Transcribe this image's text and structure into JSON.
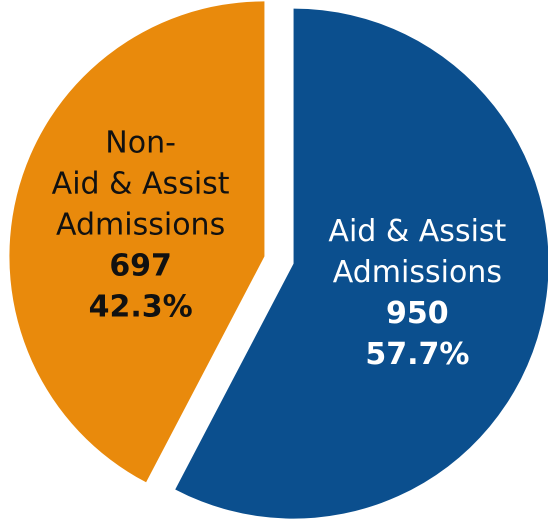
{
  "chart_data": {
    "type": "pie",
    "categories": [
      [
        "Aid & Assist",
        "Admissions"
      ],
      [
        "Non-",
        "Aid & Assist",
        "Admissions"
      ]
    ],
    "values": [
      950,
      697
    ],
    "percent_labels": [
      "57.7%",
      "42.3%"
    ],
    "colors": [
      "#0b4f8e",
      "#e98a0c"
    ],
    "label_colors": [
      "#ffffff",
      "#111111"
    ]
  }
}
